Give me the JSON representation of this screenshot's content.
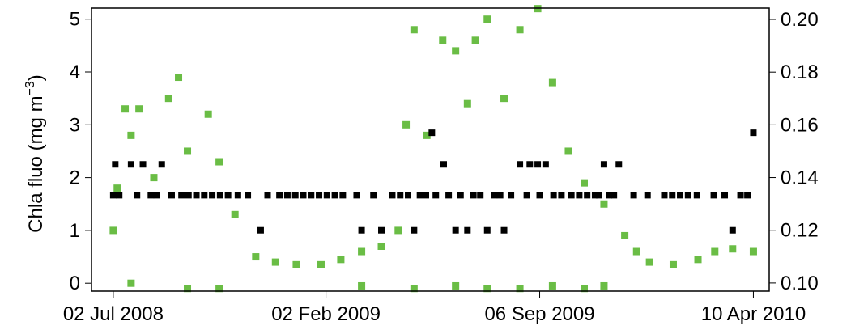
{
  "chart_data": {
    "type": "scatter",
    "ylabel": "Chla fluo (mg m",
    "ylabel_sup": "−3",
    "ylabel_end": ")",
    "xlim": [
      "2008-06-10",
      "2010-04-26"
    ],
    "xticks": [
      {
        "value": "2008-07-02",
        "label": "02 Jul 2008"
      },
      {
        "value": "2009-02-02",
        "label": "02 Feb 2009"
      },
      {
        "value": "2009-09-06",
        "label": "06 Sep 2009"
      },
      {
        "value": "2010-04-10",
        "label": "10 Apr 2010"
      }
    ],
    "ylim": [
      -0.15,
      5.21
    ],
    "yticks": [
      0,
      1,
      2,
      3,
      4,
      5
    ],
    "y2lim": [
      0.0969,
      0.2043
    ],
    "y2ticks": [
      {
        "value": 0.1,
        "label": "0.10"
      },
      0.12,
      0.14,
      0.16,
      0.18,
      {
        "value": 0.2,
        "label": "0.20"
      }
    ],
    "series": [
      {
        "color": "#6abd45",
        "x": [
          "2008-07-02",
          "2008-07-06",
          "2008-07-14",
          "2008-07-20",
          "2008-07-28",
          "2008-08-12",
          "2008-08-27",
          "2008-09-06",
          "2008-09-15",
          "2008-10-06",
          "2008-10-17",
          "2008-11-02",
          "2008-11-23",
          "2008-12-13",
          "2009-01-03",
          "2009-01-28",
          "2009-02-17",
          "2009-03-10",
          "2009-03-30",
          "2009-04-16",
          "2009-04-24",
          "2009-05-02",
          "2009-05-15",
          "2009-05-31",
          "2009-06-13",
          "2009-06-25",
          "2009-07-03",
          "2009-07-15",
          "2009-08-01",
          "2009-08-17",
          "2009-09-04",
          "2009-09-19",
          "2009-10-05",
          "2009-10-21",
          "2009-11-10",
          "2009-12-01",
          "2009-12-13",
          "2009-12-26",
          "2010-01-19",
          "2010-02-13",
          "2010-03-02",
          "2010-03-20",
          "2010-04-10",
          "2008-07-20",
          "2008-09-15",
          "2008-10-17",
          "2009-03-10",
          "2009-05-02",
          "2009-06-13",
          "2009-07-15",
          "2009-08-17",
          "2009-09-19",
          "2009-10-21",
          "2009-11-10"
        ],
        "values": [
          1.0,
          1.8,
          3.3,
          2.8,
          3.3,
          2.0,
          3.5,
          3.9,
          2.5,
          3.2,
          2.3,
          1.3,
          0.5,
          0.4,
          0.35,
          0.35,
          0.45,
          0.6,
          0.7,
          1.0,
          3.0,
          4.8,
          2.8,
          4.6,
          4.4,
          3.4,
          4.6,
          5.0,
          3.5,
          4.8,
          5.2,
          3.8,
          2.5,
          1.9,
          1.5,
          0.9,
          0.6,
          0.4,
          0.35,
          0.45,
          0.6,
          0.65,
          0.6,
          0.0,
          -0.1,
          -0.1,
          -0.05,
          -0.1,
          -0.05,
          -0.1,
          -0.1,
          -0.05,
          -0.1,
          -0.05
        ]
      },
      {
        "color": "#000000",
        "axis": "y2",
        "x": [
          "2008-07-02",
          "2008-07-08",
          "2008-07-26",
          "2008-08-09",
          "2008-08-15",
          "2008-08-30",
          "2008-09-09",
          "2008-09-16",
          "2008-09-24",
          "2008-10-02",
          "2008-10-10",
          "2008-10-18",
          "2008-10-26",
          "2008-11-05",
          "2008-11-15",
          "2008-12-05",
          "2008-12-17",
          "2008-12-25",
          "2009-01-02",
          "2009-01-10",
          "2009-01-18",
          "2009-01-26",
          "2009-02-03",
          "2009-02-11",
          "2009-02-19",
          "2009-03-05",
          "2009-03-22",
          "2009-04-10",
          "2009-04-18",
          "2009-04-26",
          "2009-05-08",
          "2009-05-14",
          "2009-05-24",
          "2009-06-06",
          "2009-06-18",
          "2009-07-01",
          "2009-07-08",
          "2009-07-22",
          "2009-07-28",
          "2009-08-08",
          "2009-08-24",
          "2009-09-06",
          "2009-09-20",
          "2009-09-28",
          "2009-10-08",
          "2009-10-16",
          "2009-10-24",
          "2009-11-01",
          "2009-11-05",
          "2009-11-15",
          "2009-11-20",
          "2009-12-10",
          "2009-12-24",
          "2010-01-10",
          "2010-01-18",
          "2010-01-26",
          "2010-02-03",
          "2010-02-12",
          "2010-03-01",
          "2010-03-12",
          "2010-03-28",
          "2010-04-04",
          "2008-07-04",
          "2008-07-20",
          "2008-08-01",
          "2008-08-20",
          "2008-11-28",
          "2009-03-10",
          "2009-03-30",
          "2009-05-02",
          "2009-05-20",
          "2009-06-01",
          "2009-06-13",
          "2009-06-25",
          "2009-07-15",
          "2009-08-01",
          "2009-08-17",
          "2009-08-27",
          "2009-09-04",
          "2009-09-12",
          "2009-11-10",
          "2009-11-25",
          "2010-03-20",
          "2010-04-10"
        ],
        "values": [
          0.1333,
          0.1333,
          0.1333,
          0.1333,
          0.1333,
          0.1333,
          0.1333,
          0.1333,
          0.1333,
          0.1333,
          0.1333,
          0.1333,
          0.1333,
          0.1333,
          0.1333,
          0.1333,
          0.1333,
          0.1333,
          0.1333,
          0.1333,
          0.1333,
          0.1333,
          0.1333,
          0.1333,
          0.1333,
          0.1333,
          0.1333,
          0.1333,
          0.1333,
          0.1333,
          0.1333,
          0.1333,
          0.1333,
          0.1333,
          0.1333,
          0.1333,
          0.1333,
          0.1333,
          0.1333,
          0.1333,
          0.1333,
          0.1333,
          0.1333,
          0.1333,
          0.1333,
          0.1333,
          0.1333,
          0.1333,
          0.1333,
          0.1333,
          0.1333,
          0.1333,
          0.1333,
          0.1333,
          0.1333,
          0.1333,
          0.1333,
          0.1333,
          0.1333,
          0.1333,
          0.1333,
          0.1333,
          0.145,
          0.145,
          0.145,
          0.145,
          0.12,
          0.12,
          0.12,
          0.12,
          0.157,
          0.145,
          0.12,
          0.12,
          0.12,
          0.12,
          0.145,
          0.145,
          0.145,
          0.145,
          0.145,
          0.145,
          0.12,
          0.157
        ]
      }
    ]
  }
}
